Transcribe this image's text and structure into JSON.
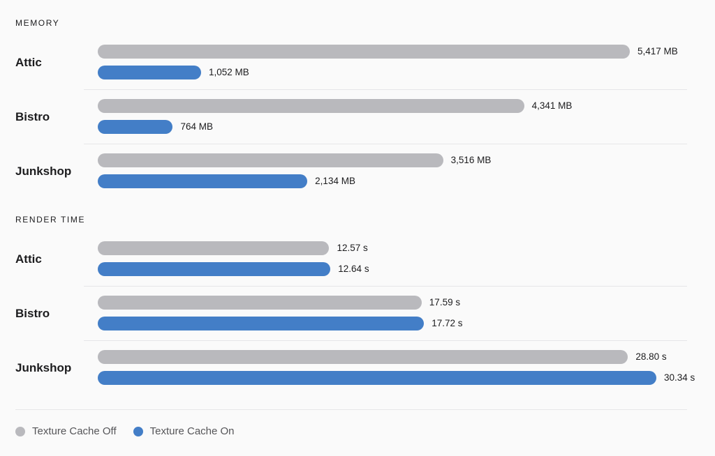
{
  "chart_data": [
    {
      "type": "bar",
      "orientation": "horizontal",
      "title": "MEMORY",
      "categories": [
        "Attic",
        "Bistro",
        "Junkshop"
      ],
      "series": [
        {
          "name": "Texture Cache Off",
          "values": [
            5417,
            4341,
            3516
          ],
          "labels": [
            "5,417 MB",
            "4,341 MB",
            "3,516 MB"
          ]
        },
        {
          "name": "Texture Cache On",
          "values": [
            1052,
            764,
            2134
          ],
          "labels": [
            "1,052 MB",
            "764 MB",
            "2,134 MB"
          ]
        }
      ],
      "xlim": [
        0,
        5417
      ],
      "grid": false,
      "legend": "bottom-left"
    },
    {
      "type": "bar",
      "orientation": "horizontal",
      "title": "RENDER TIME",
      "categories": [
        "Attic",
        "Bistro",
        "Junkshop"
      ],
      "series": [
        {
          "name": "Texture Cache Off",
          "values": [
            12.57,
            17.59,
            28.8
          ],
          "labels": [
            "12.57 s",
            "17.59 s",
            "28.80 s"
          ]
        },
        {
          "name": "Texture Cache On",
          "values": [
            12.64,
            17.72,
            30.34
          ],
          "labels": [
            "12.64 s",
            "17.72 s",
            "30.34 s"
          ]
        }
      ],
      "xlim": [
        0,
        30.34
      ],
      "grid": false,
      "legend": "bottom-left"
    }
  ],
  "legend": {
    "items": [
      {
        "name": "Texture Cache Off",
        "color": "#b9b9bd"
      },
      {
        "name": "Texture Cache On",
        "color": "#437ec7"
      }
    ]
  }
}
